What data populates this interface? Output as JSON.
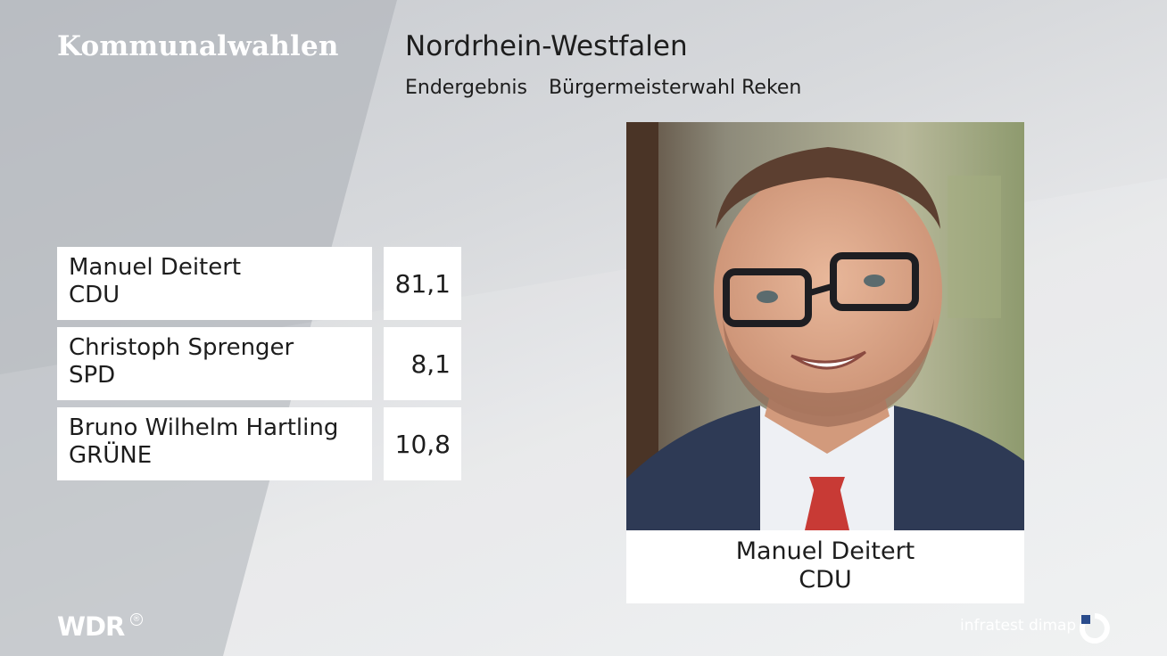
{
  "header": {
    "section_label": "Kommunalwahlen",
    "region_title": "Nordrhein-Westfalen",
    "result_type": "Endergebnis",
    "election_label": "Bürgermeisterwahl Reken"
  },
  "results": [
    {
      "name": "Manuel Deitert",
      "party": "CDU",
      "value": "81,1"
    },
    {
      "name": "Christoph Sprenger",
      "party": "SPD",
      "value": "8,1"
    },
    {
      "name": "Bruno Wilhelm Hartling",
      "party": "GRÜNE",
      "value": "10,8"
    }
  ],
  "winner": {
    "name": "Manuel Deitert",
    "party": "CDU"
  },
  "footer": {
    "broadcaster_logo": "WDR",
    "registered_mark": "®",
    "pollster": "infratest dimap",
    "pollster_icon": "infratest-dimap-logo-icon"
  },
  "colors": {
    "text": "#1d1d1d",
    "box": "#ffffff",
    "background": "#d9dbde",
    "tie_red": "#c83a35",
    "suit": "#2e3a55"
  }
}
